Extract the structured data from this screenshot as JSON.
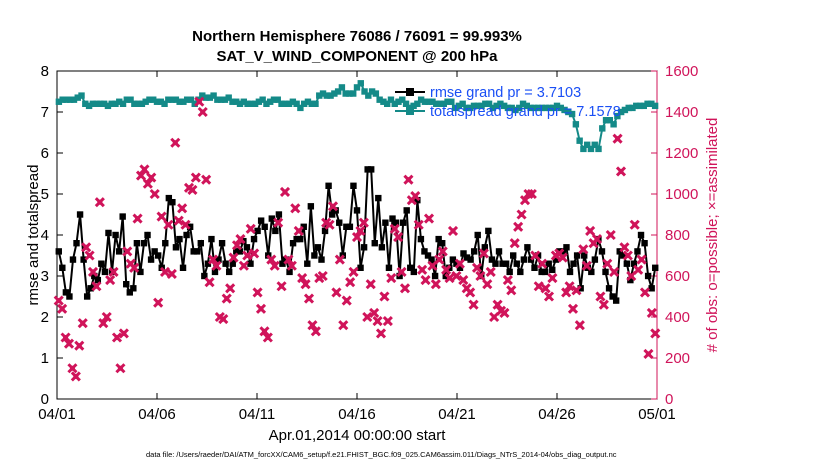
{
  "colors": {
    "rmse": "#000000",
    "spread": "#148a88",
    "obs": "#d0145a",
    "legend_text": "#1a4ff5",
    "axis": "#000000"
  },
  "chart_data": {
    "type": "line",
    "title": "Northern Hemisphere 76086 / 76091 = 99.993%",
    "subtitle": "SAT_V_WIND_COMPONENT @ 200 hPa",
    "xlabel": "Apr.01,2014 00:00:00 start",
    "ylabel_left": "rmse and totalspread",
    "ylabel_right": "# of obs: o=possible; ×=assimilated",
    "xlim": [
      0,
      30
    ],
    "ylim_left": [
      0,
      8
    ],
    "ylim_right": [
      0,
      1600
    ],
    "x_ticks": [
      0,
      5,
      10,
      15,
      20,
      25,
      30
    ],
    "x_tick_labels": [
      "04/01",
      "04/06",
      "04/11",
      "04/16",
      "04/21",
      "04/26",
      "05/01"
    ],
    "y_left_ticks": [
      "0",
      "1",
      "2",
      "3",
      "4",
      "5",
      "6",
      "7",
      "8"
    ],
    "y_right_ticks": [
      "0",
      "200",
      "400",
      "600",
      "800",
      "1000",
      "1200",
      "1400",
      "1600"
    ],
    "footer": "data file: /Users/raeder/DAI/ATM_forcXX/CAM6_setup/f.e21.FHIST_BGC.f09_025.CAM6assim.011/Diags_NTrS_2014-04/obs_diag_output.nc",
    "legend": [
      "rmse grand pr = 3.7103",
      "totalspread grand pr = 7.1578"
    ],
    "series": [
      {
        "name": "rmse grand pr = 3.7103",
        "axis": "left",
        "values": [
          3.6,
          3.2,
          2.6,
          2.5,
          3.4,
          3.8,
          4.5,
          3.4,
          2.5,
          2.7,
          3.0,
          2.9,
          3.3,
          3.1,
          4.05,
          3.1,
          4.0,
          3.6,
          4.45,
          2.8,
          2.6,
          2.7,
          3.8,
          3.1,
          3.8,
          4.0,
          3.4,
          3.6,
          3.5,
          3.2,
          3.8,
          4.9,
          4.8,
          3.7,
          3.9,
          3.2,
          4.0,
          4.2,
          3.6,
          3.6,
          3.8,
          3.0,
          3.3,
          3.9,
          3.1,
          3.4,
          3.8,
          3.3,
          3.1,
          3.3,
          3.6,
          3.6,
          3.85,
          3.7,
          3.3,
          3.9,
          4.1,
          4.35,
          4.2,
          3.5,
          4.4,
          4.1,
          4.5,
          3.3,
          3.4,
          3.1,
          3.8,
          3.9,
          3.9,
          4.2,
          3.3,
          4.7,
          3.5,
          3.7,
          3.4,
          4.1,
          5.2,
          4.5,
          4.6,
          4.3,
          3.5,
          4.2,
          4.2,
          5.2,
          4.6,
          3.2,
          3.7,
          5.6,
          5.6,
          3.8,
          4.9,
          3.7,
          4.3,
          3.2,
          4.4,
          4.3,
          3.0,
          4.3,
          4.6,
          3.2,
          3.1,
          4.85,
          3.9,
          3.6,
          3.5,
          3.4,
          3.0,
          3.9,
          3.8,
          3.0,
          3.2,
          3.4,
          3.3,
          3.2,
          3.55,
          3.45,
          3.4,
          3.6,
          4.0,
          3.0,
          3.7,
          4.1,
          3.4,
          3.3,
          3.6,
          3.3,
          3.3,
          3.1,
          3.5,
          3.3,
          3.1,
          3.4,
          3.7,
          3.4,
          3.2,
          3.5,
          3.1,
          3.1,
          3.3,
          3.15,
          3.4,
          3.6,
          3.6,
          3.7,
          3.1,
          3.3,
          3.5,
          2.7,
          3.5,
          3.2,
          3.1,
          3.4,
          3.9,
          3.6,
          3.1,
          2.7,
          2.5,
          2.4,
          3.6,
          3.5,
          3.3,
          2.9,
          3.3,
          3.6,
          4.0,
          3.8,
          3.0,
          2.7,
          3.2
        ]
      },
      {
        "name": "totalspread grand pr = 7.1578",
        "axis": "left",
        "values": [
          7.25,
          7.3,
          7.3,
          7.3,
          7.3,
          7.35,
          7.4,
          7.2,
          7.15,
          7.2,
          7.2,
          7.2,
          7.2,
          7.15,
          7.2,
          7.2,
          7.25,
          7.2,
          7.3,
          7.3,
          7.2,
          7.2,
          7.2,
          7.25,
          7.3,
          7.3,
          7.25,
          7.25,
          7.2,
          7.3,
          7.3,
          7.3,
          7.25,
          7.25,
          7.3,
          7.3,
          7.2,
          7.3,
          7.4,
          7.35,
          7.35,
          7.4,
          7.3,
          7.3,
          7.3,
          7.35,
          7.25,
          7.25,
          7.2,
          7.25,
          7.2,
          7.2,
          7.2,
          7.25,
          7.3,
          7.2,
          7.25,
          7.3,
          7.3,
          7.2,
          7.2,
          7.2,
          7.25,
          7.2,
          7.1,
          7.2,
          7.25,
          7.2,
          7.2,
          7.4,
          7.45,
          7.4,
          7.4,
          7.45,
          7.5,
          7.6,
          7.45,
          7.45,
          7.45,
          7.6,
          7.7,
          7.5,
          7.4,
          7.5,
          7.45,
          7.3,
          7.25,
          7.2,
          7.3,
          7.2,
          7.25,
          7.3,
          7.2,
          7.1,
          7.15,
          7.2,
          7.3,
          7.25,
          7.25,
          7.25,
          7.2,
          7.2,
          7.2,
          7.25,
          7.25,
          7.1,
          7.15,
          7.2,
          7.1,
          7.1,
          7.15,
          7.15,
          7.15,
          7.2,
          7.2,
          7.1,
          7.15,
          7.2,
          7.15,
          7.1,
          7.1,
          7.05,
          7.1,
          7.2,
          7.15,
          7.1,
          7.1,
          7.1,
          7.1,
          7.1,
          7.1,
          7.1,
          7.15,
          7.1,
          7.05,
          7.0,
          6.95,
          6.7,
          6.3,
          6.1,
          6.2,
          6.1,
          6.2,
          6.1,
          6.6,
          6.8,
          6.8,
          6.7,
          6.9,
          7.0,
          7.05,
          7.1,
          7.1,
          7.15,
          7.15,
          7.15,
          7.2,
          7.2,
          7.15
        ]
      },
      {
        "name": "obs assimilated",
        "axis": "right",
        "marker": "x",
        "values": [
          480,
          440,
          300,
          270,
          150,
          110,
          260,
          370,
          740,
          700,
          620,
          550,
          960,
          370,
          400,
          580,
          620,
          300,
          150,
          320,
          720,
          660,
          640,
          880,
          1090,
          1120,
          1050,
          1080,
          1000,
          470,
          890,
          620,
          850,
          610,
          1250,
          870,
          930,
          850,
          1030,
          1020,
          1080,
          1450,
          1400,
          1070,
          570,
          680,
          650,
          400,
          390,
          490,
          540,
          690,
          750,
          780,
          650,
          700,
          830,
          710,
          520,
          440,
          330,
          300,
          680,
          650,
          860,
          550,
          1010,
          680,
          650,
          930,
          820,
          590,
          560,
          490,
          360,
          330,
          590,
          600,
          860,
          850,
          940,
          520,
          680,
          360,
          480,
          570,
          620,
          790,
          820,
          860,
          400,
          560,
          420,
          380,
          320,
          500,
          380,
          590,
          830,
          790,
          620,
          540,
          1070,
          970,
          990,
          850,
          630,
          580,
          880,
          650,
          560,
          680,
          720,
          630,
          590,
          820,
          600,
          660,
          580,
          540,
          520,
          460,
          640,
          600,
          710,
          560,
          620,
          400,
          460,
          430,
          420,
          580,
          530,
          760,
          840,
          900,
          970,
          1000,
          1000,
          700,
          550,
          660,
          540,
          500,
          590,
          700,
          710,
          690,
          520,
          550,
          440,
          530,
          360,
          730,
          650,
          820,
          760,
          780,
          500,
          460,
          660,
          800,
          620,
          1270,
          1110,
          740,
          700,
          600,
          850,
          630,
          680,
          520,
          220,
          420,
          320
        ]
      }
    ]
  }
}
